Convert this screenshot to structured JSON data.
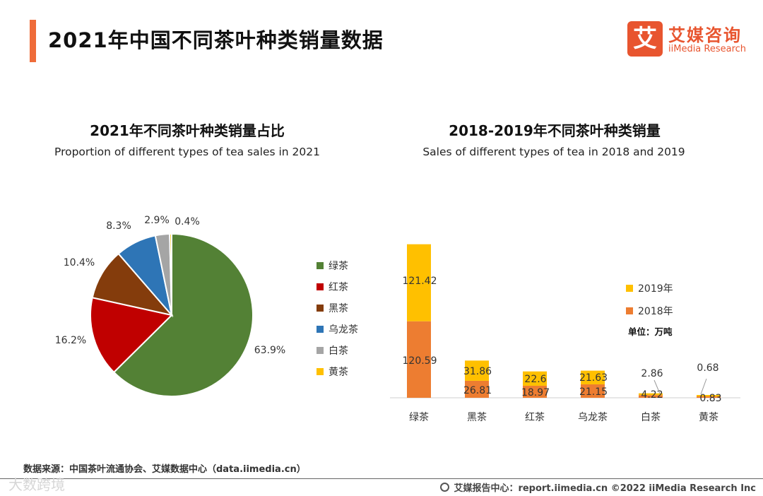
{
  "header": {
    "title": "2021年中国不同茶叶种类销量数据",
    "logo_mark": "艾",
    "logo_cn": "艾媒咨询",
    "logo_en": "iiMedia Research"
  },
  "chart_data": [
    {
      "type": "pie",
      "title": "2021年不同茶叶种类销量占比",
      "subtitle": "Proportion of different types of tea sales in 2021",
      "categories": [
        "绿茶",
        "红茶",
        "黑茶",
        "乌龙茶",
        "白茶",
        "黄茶"
      ],
      "values": [
        63.9,
        16.2,
        10.4,
        8.3,
        2.9,
        0.4
      ],
      "labels": [
        "63.9%",
        "16.2%",
        "10.4%",
        "8.3%",
        "2.9%",
        "0.4%"
      ],
      "colors": [
        "#538135",
        "#c00000",
        "#843c0c",
        "#2e75b6",
        "#a5a5a5",
        "#ffc000"
      ],
      "legend_position": "right"
    },
    {
      "type": "bar",
      "stacked": true,
      "title": "2018-2019年不同茶叶种类销量",
      "subtitle": "Sales of different types of tea in 2018 and 2019",
      "categories": [
        "绿茶",
        "黑茶",
        "红茶",
        "乌龙茶",
        "白茶",
        "黄茶"
      ],
      "series": [
        {
          "name": "2018年",
          "values": [
            120.59,
            26.81,
            18.97,
            21.15,
            4.22,
            0.83
          ],
          "labels": [
            "120.59",
            "26.81",
            "18.97",
            "21.15",
            "4.22",
            "0.83"
          ],
          "color": "#ed7d31"
        },
        {
          "name": "2019年",
          "values": [
            121.42,
            31.86,
            22.6,
            21.63,
            2.86,
            0.68
          ],
          "labels": [
            "121.42",
            "31.86",
            "22.6",
            "21.63",
            "2.86",
            "0.68"
          ],
          "color": "#ffc000"
        }
      ],
      "unit": "单位：万吨",
      "ylim": [
        0,
        245
      ],
      "legend_position": "right"
    }
  ],
  "footer": {
    "source": "数据来源：中国茶叶流通协会、艾媒数据中心（data.iimedia.cn）",
    "report": "艾媒报告中心：report.iimedia.cn  ©2022  iiMedia Research  Inc",
    "watermark": "大数跨境"
  }
}
